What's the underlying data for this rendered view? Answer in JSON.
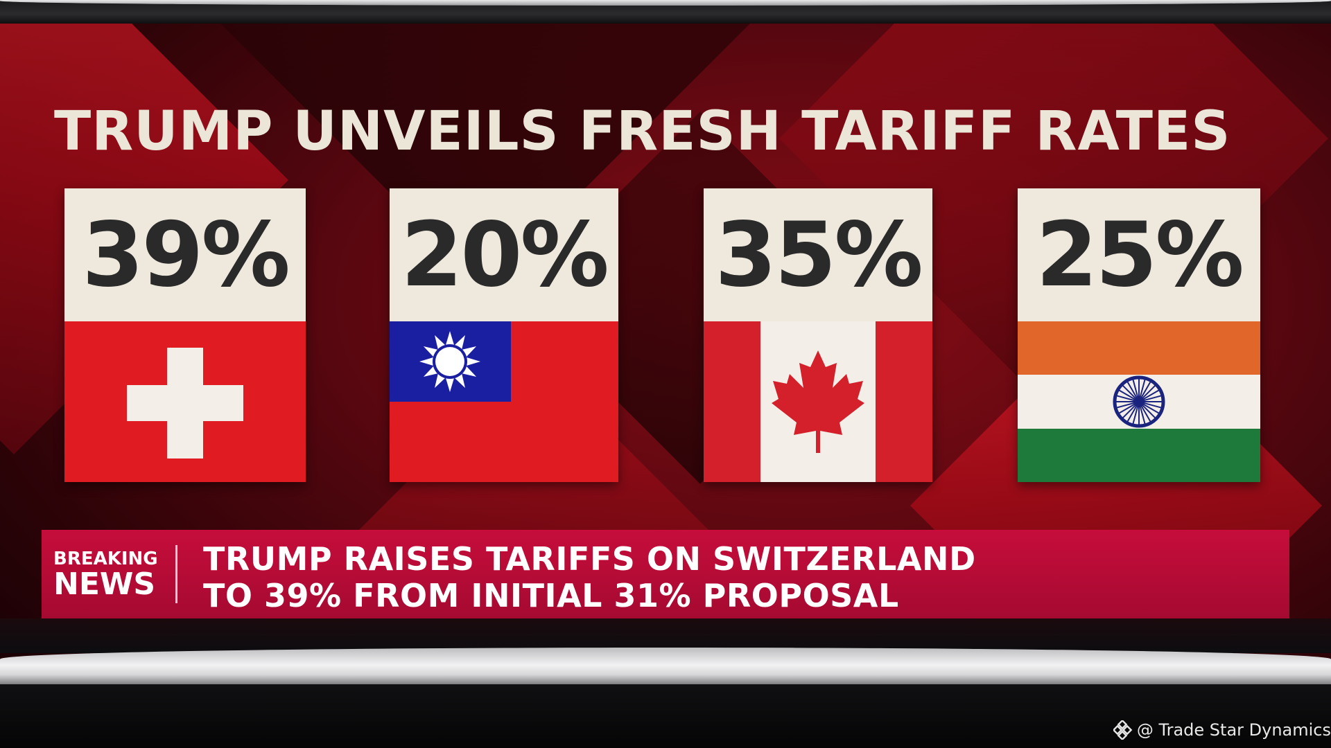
{
  "headline": "TRUMP UNVEILS FRESH TARIFF RATES",
  "tariffs": [
    {
      "rate": "39%",
      "flag": "switzerland-flag"
    },
    {
      "rate": "20%",
      "flag": "taiwan-flag"
    },
    {
      "rate": "35%",
      "flag": "canada-flag"
    },
    {
      "rate": "25%",
      "flag": "india-flag"
    }
  ],
  "ticker": {
    "label_line1": "BREAKING",
    "label_line2": "NEWS",
    "story_line1": "TRUMP RAISES TARIFFS ON SWITZERLAND",
    "story_line2": "TO 39% FROM INITIAL 31% PROPOSAL"
  },
  "watermark": "@ Trade Star Dynamics",
  "colors": {
    "background": "#6b0911",
    "headline": "#ece6d8",
    "card": "#efe9dd",
    "rate_text": "#2a2a2a",
    "ticker": "#b80b35",
    "swiss_red": "#e11b22",
    "taiwan_red": "#e11b22",
    "taiwan_blue": "#1a1ea0",
    "canada_red": "#d3202b",
    "india_saffron": "#e0662a",
    "india_green": "#1d7a3a",
    "india_chakra": "#1a237e"
  }
}
